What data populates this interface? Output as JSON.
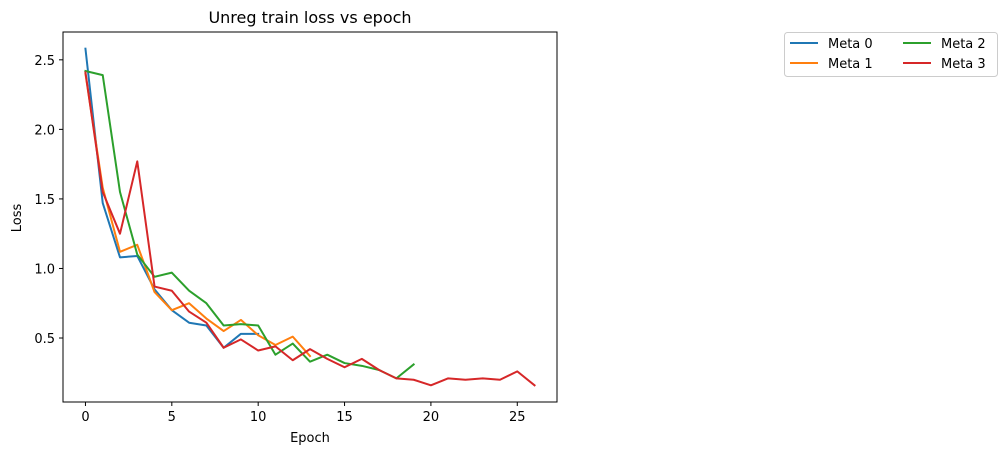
{
  "chart_data": {
    "type": "line",
    "title": "Unreg train loss vs epoch",
    "xlabel": "Epoch",
    "ylabel": "Loss",
    "xlim": [
      -1.3,
      27.3
    ],
    "ylim": [
      0.04,
      2.7
    ],
    "xticks": [
      0,
      5,
      10,
      15,
      20,
      25
    ],
    "yticks": [
      0.5,
      1.0,
      1.5,
      2.0,
      2.5
    ],
    "xtick_labels": [
      "0",
      "5",
      "10",
      "15",
      "20",
      "25"
    ],
    "ytick_labels": [
      "0.5",
      "1.0",
      "1.5",
      "2.0",
      "2.5"
    ],
    "grid": false,
    "legend_position": "outside top-right",
    "series": [
      {
        "name": "Meta 0",
        "color": "#1f77b4",
        "x": [
          0,
          1,
          2,
          3,
          4,
          5,
          6,
          7,
          8,
          9,
          10
        ],
        "y": [
          2.58,
          1.47,
          1.08,
          1.09,
          0.85,
          0.7,
          0.61,
          0.59,
          0.43,
          0.53,
          0.53
        ]
      },
      {
        "name": "Meta 1",
        "color": "#ff7f0e",
        "x": [
          0,
          1,
          2,
          3,
          4,
          5,
          6,
          7,
          8,
          9,
          10,
          11,
          12,
          13
        ],
        "y": [
          2.4,
          1.58,
          1.12,
          1.17,
          0.83,
          0.7,
          0.75,
          0.64,
          0.55,
          0.63,
          0.52,
          0.45,
          0.51,
          0.37
        ]
      },
      {
        "name": "Meta 2",
        "color": "#2ca02c",
        "x": [
          0,
          1,
          2,
          3,
          4,
          5,
          6,
          7,
          8,
          9,
          10,
          11,
          12,
          13,
          14,
          15,
          16,
          17,
          18,
          19
        ],
        "y": [
          2.42,
          2.39,
          1.55,
          1.1,
          0.94,
          0.97,
          0.84,
          0.75,
          0.59,
          0.6,
          0.59,
          0.38,
          0.46,
          0.33,
          0.38,
          0.32,
          0.3,
          0.27,
          0.21,
          0.31
        ]
      },
      {
        "name": "Meta 3",
        "color": "#d62728",
        "x": [
          0,
          1,
          2,
          3,
          4,
          5,
          6,
          7,
          8,
          9,
          10,
          11,
          12,
          13,
          14,
          15,
          16,
          17,
          18,
          19,
          20,
          21,
          22,
          23,
          24,
          25,
          26
        ],
        "y": [
          2.41,
          1.55,
          1.25,
          1.77,
          0.87,
          0.84,
          0.69,
          0.61,
          0.43,
          0.49,
          0.41,
          0.44,
          0.34,
          0.42,
          0.35,
          0.29,
          0.35,
          0.27,
          0.21,
          0.2,
          0.16,
          0.21,
          0.2,
          0.21,
          0.2,
          0.26,
          0.16
        ]
      }
    ]
  }
}
